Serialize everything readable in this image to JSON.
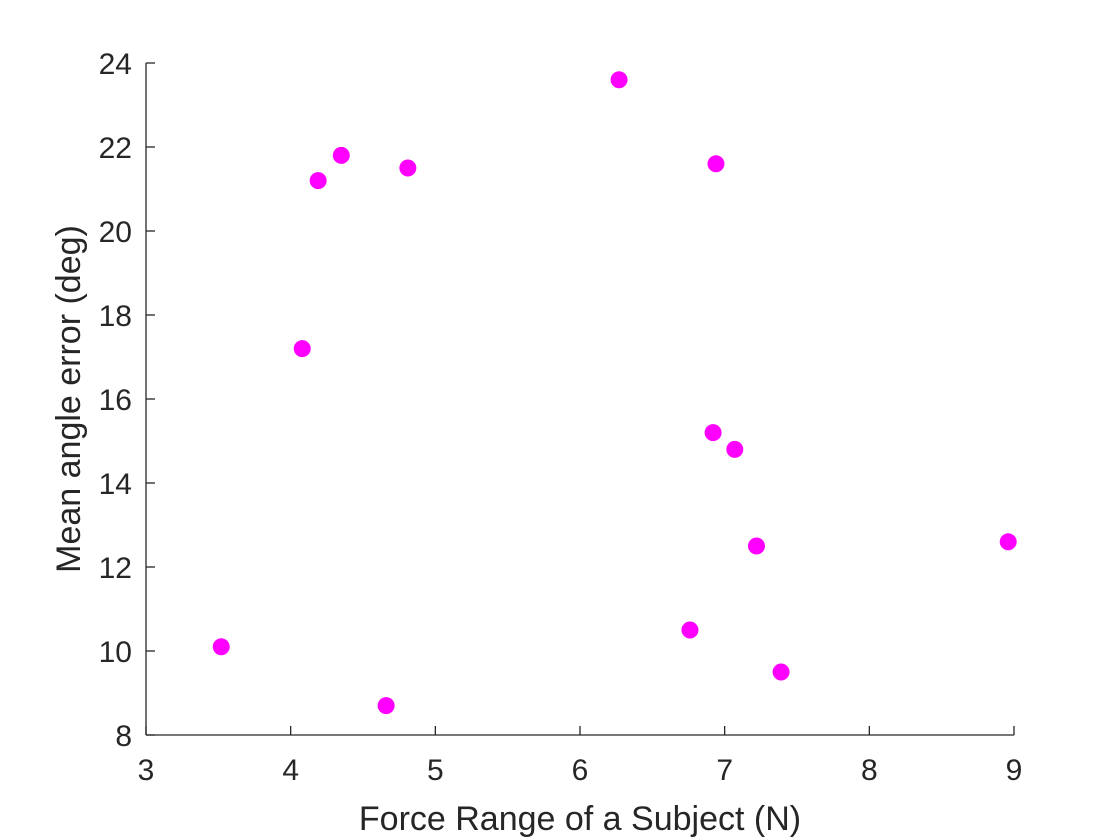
{
  "chart_data": {
    "type": "scatter",
    "title": "",
    "xlabel": "Force Range of a Subject (N)",
    "ylabel": "Mean angle error (deg)",
    "xlim": [
      3,
      9
    ],
    "ylim": [
      8,
      24
    ],
    "xticks": [
      3,
      4,
      5,
      6,
      7,
      8,
      9
    ],
    "yticks": [
      8,
      10,
      12,
      14,
      16,
      18,
      20,
      22,
      24
    ],
    "grid": false,
    "marker_color": "#ff00ff",
    "axis_color": "#262626",
    "points": [
      {
        "x": 3.52,
        "y": 10.1
      },
      {
        "x": 4.08,
        "y": 17.2
      },
      {
        "x": 4.19,
        "y": 21.2
      },
      {
        "x": 4.35,
        "y": 21.8
      },
      {
        "x": 4.66,
        "y": 8.7
      },
      {
        "x": 4.81,
        "y": 21.5
      },
      {
        "x": 6.27,
        "y": 23.6
      },
      {
        "x": 6.76,
        "y": 10.5
      },
      {
        "x": 6.92,
        "y": 15.2
      },
      {
        "x": 6.94,
        "y": 21.6
      },
      {
        "x": 7.07,
        "y": 14.8
      },
      {
        "x": 7.22,
        "y": 12.5
      },
      {
        "x": 7.39,
        "y": 9.5
      },
      {
        "x": 8.96,
        "y": 12.6
      }
    ]
  }
}
